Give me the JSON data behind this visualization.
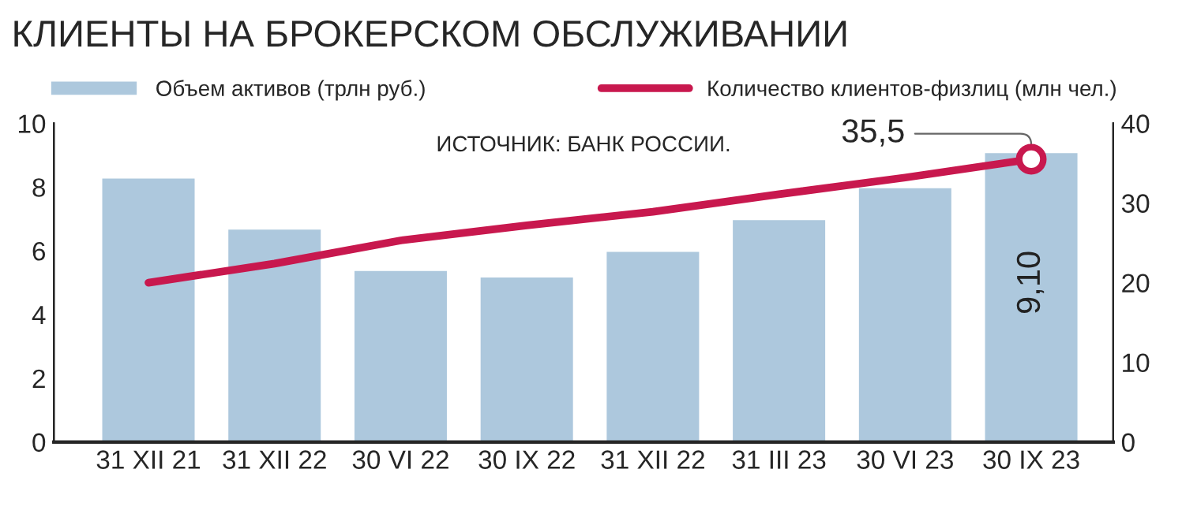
{
  "chart_data": {
    "type": "bar",
    "title": "КЛИЕНТЫ НА БРОКЕРСКОМ ОБСЛУЖИВАНИИ",
    "categories": [
      "31 XII 21",
      "31 XII 22",
      "30 VI 22",
      "30 IX 22",
      "31 XII 22",
      "31 III 23",
      "30 VI 23",
      "30 IX 23"
    ],
    "series": [
      {
        "name": "Объем активов (трлн руб.)",
        "color": "#adc8dd",
        "values": [
          8.3,
          6.7,
          5.4,
          5.2,
          6.0,
          7.0,
          8.0,
          9.1
        ],
        "value_labels": [
          null,
          null,
          null,
          null,
          null,
          null,
          null,
          "9,10"
        ]
      },
      {
        "name": "Количество клиентов-физлиц (млн чел.)",
        "type": "line",
        "axis": "y2",
        "color": "#c8184e",
        "values": [
          20.0,
          22.4,
          25.3,
          27.2,
          28.9,
          31.1,
          33.2,
          35.5
        ],
        "value_labels": [
          null,
          null,
          null,
          null,
          null,
          null,
          null,
          "35,5"
        ]
      }
    ],
    "ylim": [
      0,
      10
    ],
    "yticks": [
      0,
      2,
      4,
      6,
      8,
      10
    ],
    "y2lim": [
      0,
      40
    ],
    "y2ticks": [
      0,
      10,
      20,
      30,
      40
    ],
    "annotations": [
      "ИСТОЧНИК: БАНК РОССИИ."
    ],
    "legend": "top",
    "grid": false
  }
}
